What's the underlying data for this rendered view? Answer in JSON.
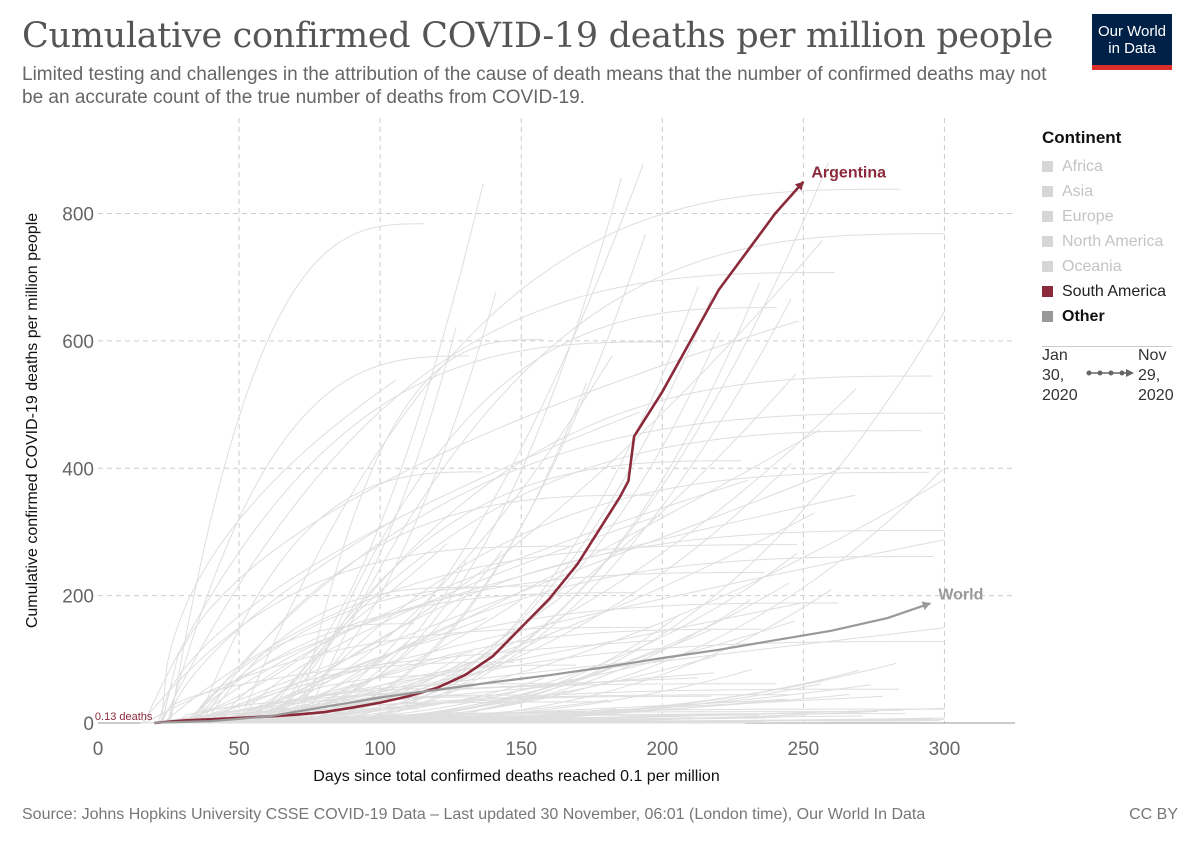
{
  "header": {
    "title": "Cumulative confirmed COVID-19 deaths per million people",
    "subtitle": "Limited testing and challenges in the attribution of the cause of death means that the number of confirmed deaths may not be an accurate count of the true number of deaths from COVID-19."
  },
  "logo": {
    "line1": "Our World",
    "line2": "in Data",
    "bg": "#002147",
    "accent": "#dc2f2a"
  },
  "legend": {
    "title": "Continent",
    "items": [
      {
        "label": "Africa",
        "color": "#d6d6d6",
        "text_color": "#c4c4c4"
      },
      {
        "label": "Asia",
        "color": "#d6d6d6",
        "text_color": "#c4c4c4"
      },
      {
        "label": "Europe",
        "color": "#d6d6d6",
        "text_color": "#c4c4c4"
      },
      {
        "label": "North America",
        "color": "#d6d6d6",
        "text_color": "#c4c4c4"
      },
      {
        "label": "Oceania",
        "color": "#d6d6d6",
        "text_color": "#c4c4c4"
      },
      {
        "label": "South America",
        "color": "#8b2a3b",
        "text_color": "#222222"
      },
      {
        "label": "Other",
        "color": "#999999",
        "text_color": "#111111"
      }
    ]
  },
  "timeline": {
    "start": [
      "Jan",
      "30,",
      "2020"
    ],
    "end": [
      "Nov",
      "29,",
      "2020"
    ]
  },
  "footer": {
    "source": "Source: Johns Hopkins University CSSE COVID-19 Data – Last updated 30 November, 06:01 (London time), Our World In Data",
    "license": "CC BY"
  },
  "chart_data": {
    "type": "line",
    "title": "Cumulative confirmed COVID-19 deaths per million people",
    "xlabel": "Days since total confirmed deaths reached 0.1 per million",
    "ylabel": "Cumulative confirmed COVID-19 deaths per million people",
    "xlim": [
      0,
      325
    ],
    "ylim": [
      0,
      950
    ],
    "xticks": [
      0,
      50,
      100,
      150,
      200,
      250,
      300
    ],
    "yticks": [
      0,
      200,
      400,
      600,
      800
    ],
    "start_annotation": "0.13 deaths",
    "series": [
      {
        "name": "Argentina",
        "highlighted": true,
        "color": "#8b2a3b",
        "x": [
          20,
          30,
          40,
          50,
          60,
          70,
          80,
          90,
          100,
          110,
          120,
          130,
          140,
          150,
          160,
          170,
          180,
          185,
          188,
          190,
          200,
          210,
          220,
          230,
          240,
          245,
          250
        ],
        "y": [
          0.13,
          4,
          6,
          8,
          10,
          13,
          17,
          24,
          32,
          42,
          55,
          75,
          105,
          150,
          195,
          250,
          320,
          355,
          380,
          450,
          520,
          600,
          680,
          740,
          800,
          825,
          850
        ]
      },
      {
        "name": "World",
        "highlighted": true,
        "color": "#999999",
        "x": [
          20,
          40,
          60,
          80,
          100,
          120,
          140,
          160,
          180,
          200,
          220,
          240,
          260,
          280,
          295
        ],
        "y": [
          0.5,
          3,
          10,
          25,
          40,
          52,
          64,
          75,
          88,
          102,
          115,
          130,
          145,
          165,
          188
        ]
      }
    ],
    "background_series_count": 150
  }
}
